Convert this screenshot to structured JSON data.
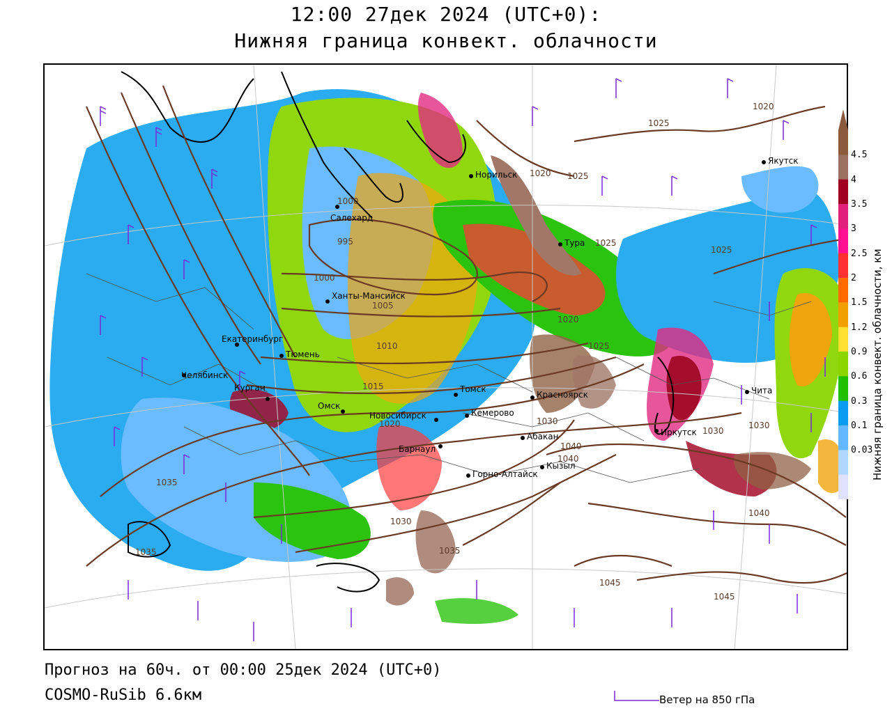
{
  "header": {
    "line1": "12:00 27дек 2024 (UTC+0):",
    "line2": "Нижняя граница конвект. облачности"
  },
  "footer": {
    "forecast": "Прогноз на 60ч. от 00:00 25дек 2024 (UTC+0)",
    "model": "COSMO-RuSib 6.6км"
  },
  "colorbar": {
    "title": "Нижняя граница конвект. облачности, км",
    "labels": [
      "4.5",
      "4",
      "3.5",
      "3",
      "2.5",
      "2",
      "1.5",
      "1.2",
      "0.9",
      "0.6",
      "0.3",
      "0.1",
      "0.03"
    ],
    "colors": [
      "#8b5a3c",
      "#9c7060",
      "#a00020",
      "#e0207a",
      "#ff1090",
      "#ff3030",
      "#ff6a00",
      "#f0a000",
      "#ffe030",
      "#8cd500",
      "#20c000",
      "#0a9cf0",
      "#63b8ff",
      "#b0d8ff",
      "#e0e0ff"
    ]
  },
  "wind_key": {
    "label": "Ветер на 850 гПа"
  },
  "cities": [
    {
      "name": "Норильск"
    },
    {
      "name": "Салехард"
    },
    {
      "name": "Тура"
    },
    {
      "name": "Якутск"
    },
    {
      "name": "Ханты-Мансийск"
    },
    {
      "name": "Екатеринбург"
    },
    {
      "name": "Тюмень"
    },
    {
      "name": "Челябинск"
    },
    {
      "name": "Курган"
    },
    {
      "name": "Омск"
    },
    {
      "name": "Томск"
    },
    {
      "name": "Новосибирск"
    },
    {
      "name": "Кемерово"
    },
    {
      "name": "Красноярск"
    },
    {
      "name": "Абакан"
    },
    {
      "name": "Барнаул"
    },
    {
      "name": "Кызыл"
    },
    {
      "name": "Горно-Алтайск"
    },
    {
      "name": "Иркутск"
    },
    {
      "name": "Чита"
    }
  ],
  "isobars": [
    "1020",
    "1025",
    "1020",
    "1025",
    "1025",
    "1025",
    "1000",
    "995",
    "1000",
    "1005",
    "1010",
    "1015",
    "1020",
    "1020",
    "1025",
    "1030",
    "1035",
    "1030",
    "1040",
    "1040",
    "1030",
    "1035",
    "1035",
    "1045",
    "1045",
    "1040",
    "1030"
  ]
}
